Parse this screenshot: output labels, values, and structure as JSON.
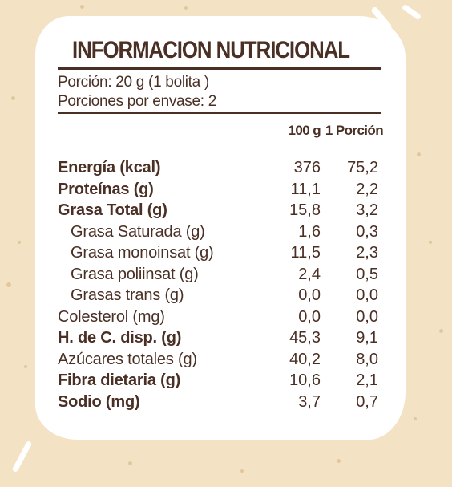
{
  "label": {
    "title": "INFORMACION NUTRICIONAL",
    "portion": "Porción: 20 g (1 bolita )",
    "servings": "Porciones por envase: 2",
    "columns": [
      "100 g",
      "1 Porción"
    ],
    "rows": [
      {
        "label": "Energía (kcal)",
        "v100": "376",
        "vportion": "75,2",
        "style": "bold"
      },
      {
        "label": "Proteínas (g)",
        "v100": "11,1",
        "vportion": "2,2",
        "style": "bold"
      },
      {
        "label": "Grasa Total (g)",
        "v100": "15,8",
        "vportion": "3,2",
        "style": "bold"
      },
      {
        "label": "Grasa Saturada (g)",
        "v100": "1,6",
        "vportion": "0,3",
        "style": "indent"
      },
      {
        "label": "Grasa monoinsat (g)",
        "v100": "11,5",
        "vportion": "2,3",
        "style": "indent"
      },
      {
        "label": "Grasa poliinsat (g)",
        "v100": "2,4",
        "vportion": "0,5",
        "style": "indent"
      },
      {
        "label": "Grasas trans (g)",
        "v100": "0,0",
        "vportion": "0,0",
        "style": "indent"
      },
      {
        "label": "Colesterol (mg)",
        "v100": "0,0",
        "vportion": "0,0",
        "style": "normal"
      },
      {
        "label": "H. de C. disp. (g)",
        "v100": "45,3",
        "vportion": "9,1",
        "style": "bold"
      },
      {
        "label": "Azúcares totales (g)",
        "v100": "40,2",
        "vportion": "8,0",
        "style": "normal"
      },
      {
        "label": "Fibra dietaria (g)",
        "v100": "10,6",
        "vportion": "2,1",
        "style": "bold"
      },
      {
        "label": "Sodio (mg)",
        "v100": "3,7",
        "vportion": "0,7",
        "style": "bold"
      }
    ]
  },
  "colors": {
    "background": "#f3e3c4",
    "card": "#ffffff",
    "text": "#4a2f24",
    "speckle": "#e2c79c"
  }
}
